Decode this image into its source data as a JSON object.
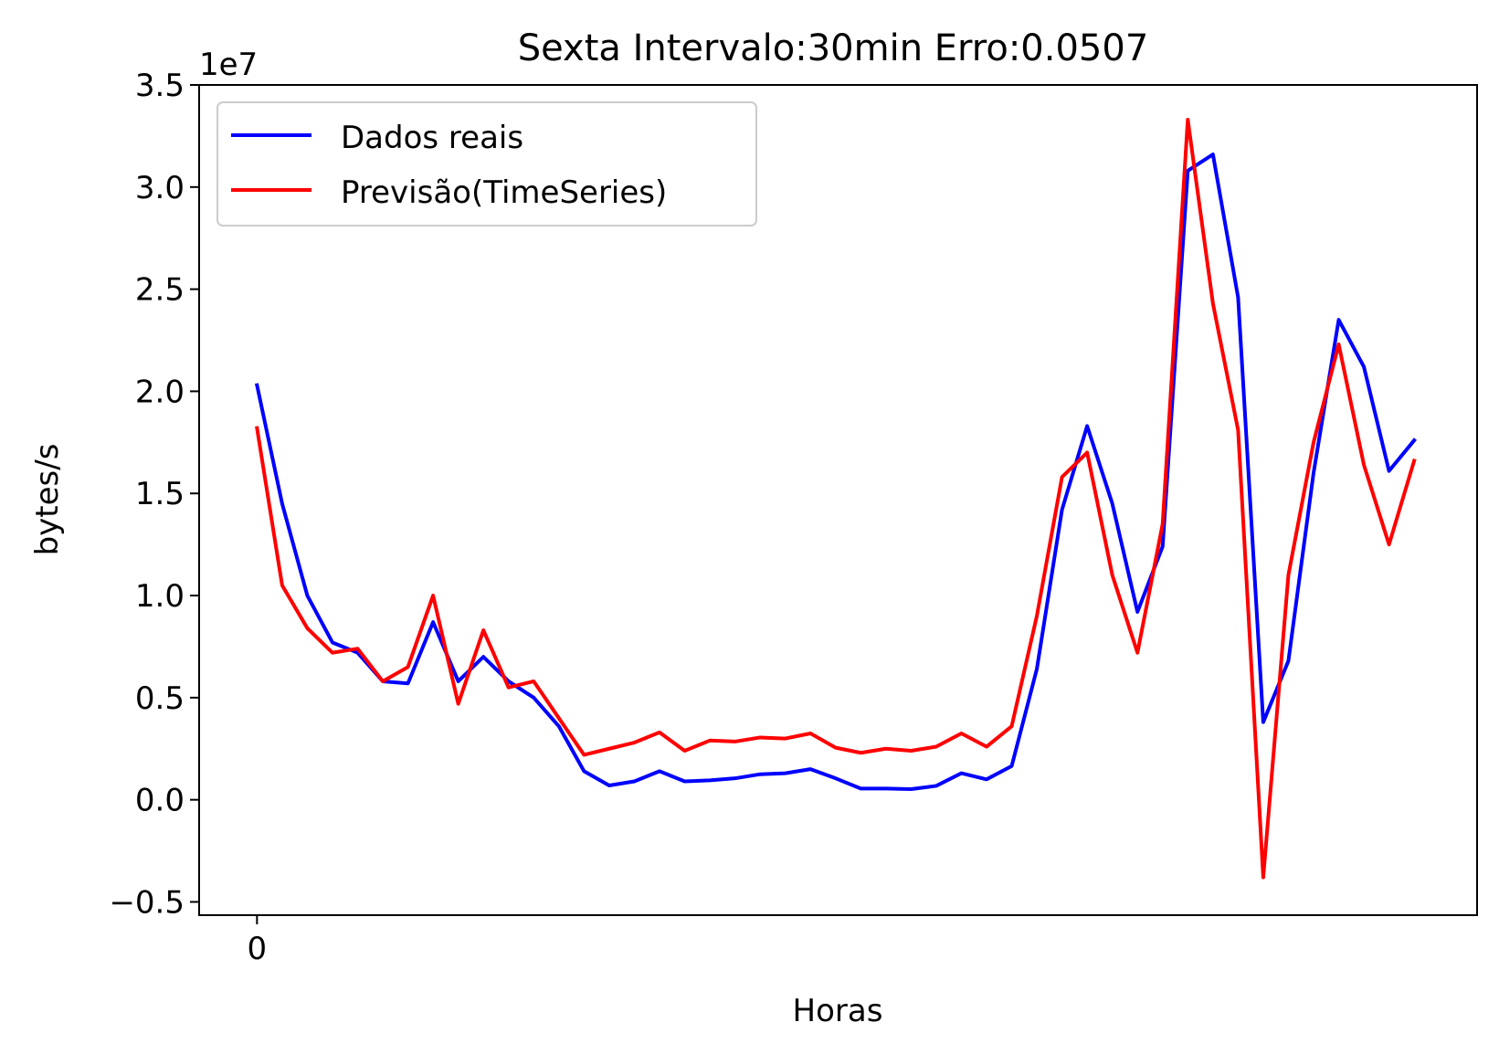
{
  "chart_data": {
    "type": "line",
    "title": "Sexta Intervalo:30min Erro:0.0507",
    "xlabel": "Horas",
    "ylabel": "bytes/s",
    "y_offset_label": "1e7",
    "y_multiplier": 10000000,
    "x_ticks": [
      0
    ],
    "x_tick_labels": [
      "0"
    ],
    "xlim": [
      -2.3,
      48.5
    ],
    "y_ticks": [
      -0.5,
      0.0,
      0.5,
      1.0,
      1.5,
      2.0,
      2.5,
      3.0,
      3.5
    ],
    "y_tick_labels": [
      "−0.5",
      "0.0",
      "0.5",
      "1.0",
      "1.5",
      "2.0",
      "2.5",
      "3.0",
      "3.5"
    ],
    "ylim": [
      -0.565,
      3.5
    ],
    "grid": false,
    "legend_position": "top-left",
    "series": [
      {
        "name": "Dados reais",
        "color": "#0000ff",
        "values": [
          2.03,
          1.45,
          1.0,
          0.77,
          0.72,
          0.58,
          0.57,
          0.87,
          0.58,
          0.7,
          0.58,
          0.5,
          0.36,
          0.14,
          0.07,
          0.09,
          0.14,
          0.09,
          0.095,
          0.105,
          0.125,
          0.13,
          0.15,
          0.105,
          0.055,
          0.055,
          0.052,
          0.068,
          0.13,
          0.1,
          0.165,
          0.64,
          1.42,
          1.83,
          1.45,
          0.92,
          1.24,
          3.08,
          3.16,
          2.46,
          0.38,
          0.68,
          1.6,
          2.35,
          2.12,
          1.61,
          1.76
        ]
      },
      {
        "name": "Previsão(TimeSeries)",
        "color": "#ff0000",
        "values": [
          1.82,
          1.05,
          0.84,
          0.72,
          0.74,
          0.58,
          0.65,
          1.0,
          0.47,
          0.83,
          0.55,
          0.58,
          0.4,
          0.22,
          0.25,
          0.28,
          0.33,
          0.24,
          0.29,
          0.285,
          0.305,
          0.3,
          0.325,
          0.255,
          0.23,
          0.25,
          0.24,
          0.26,
          0.325,
          0.26,
          0.36,
          0.9,
          1.58,
          1.7,
          1.1,
          0.72,
          1.35,
          3.33,
          2.43,
          1.81,
          -0.38,
          1.1,
          1.75,
          2.23,
          1.64,
          1.25,
          1.66
        ]
      }
    ]
  }
}
